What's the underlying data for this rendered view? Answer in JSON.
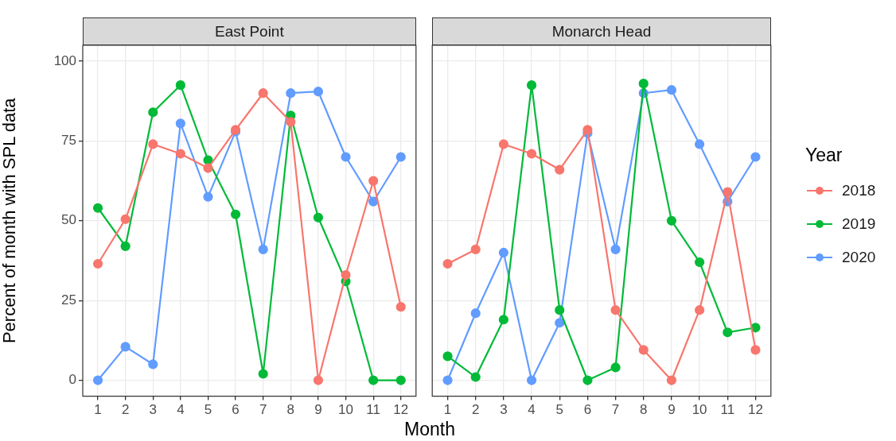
{
  "chart_data": [
    {
      "type": "line",
      "title": "East Point",
      "xlabel": "Month",
      "ylabel": "Percent of month with SPL data",
      "legend_title": "Year",
      "legend": "right",
      "marker": "circle",
      "grid": true,
      "x": [
        1,
        2,
        3,
        4,
        5,
        6,
        7,
        8,
        9,
        10,
        11,
        12
      ],
      "xlim": [
        0.45,
        12.55
      ],
      "xticks": [
        1,
        2,
        3,
        4,
        5,
        6,
        7,
        8,
        9,
        10,
        11,
        12
      ],
      "ylim": [
        -5,
        105
      ],
      "yticks": [
        0,
        25,
        50,
        75,
        100
      ],
      "series": [
        {
          "name": "2018",
          "color": "#f8766d",
          "values": [
            36.5,
            50.5,
            74,
            71,
            66.5,
            78.5,
            90,
            81,
            0,
            33,
            62.5,
            23
          ]
        },
        {
          "name": "2019",
          "color": "#00ba38",
          "values": [
            54,
            42,
            84,
            92.5,
            69,
            52,
            2,
            83,
            51,
            31,
            0,
            0
          ]
        },
        {
          "name": "2020",
          "color": "#619cff",
          "values": [
            0,
            10.5,
            5,
            80.5,
            57.5,
            78,
            41,
            90,
            90.5,
            70,
            56,
            70
          ]
        }
      ]
    },
    {
      "type": "line",
      "title": "Monarch Head",
      "marker": "circle",
      "grid": true,
      "tick_labels": "x",
      "x": [
        1,
        2,
        3,
        4,
        5,
        6,
        7,
        8,
        9,
        10,
        11,
        12
      ],
      "xlim": [
        0.45,
        12.55
      ],
      "xticks": [
        1,
        2,
        3,
        4,
        5,
        6,
        7,
        8,
        9,
        10,
        11,
        12
      ],
      "ylim": [
        -5,
        105
      ],
      "yticks": [
        0,
        25,
        50,
        75,
        100
      ],
      "series": [
        {
          "name": "2018",
          "color": "#f8766d",
          "values": [
            36.5,
            41,
            74,
            71,
            66,
            78.5,
            22,
            9.5,
            0,
            22,
            59,
            9.5
          ]
        },
        {
          "name": "2019",
          "color": "#00ba38",
          "values": [
            7.5,
            1,
            19,
            92.5,
            22,
            0,
            4,
            93,
            50,
            37,
            15,
            16.5
          ]
        },
        {
          "name": "2020",
          "color": "#619cff",
          "values": [
            0,
            21,
            40,
            0,
            18,
            77.5,
            41,
            90,
            91,
            74,
            56,
            70
          ]
        }
      ]
    }
  ]
}
